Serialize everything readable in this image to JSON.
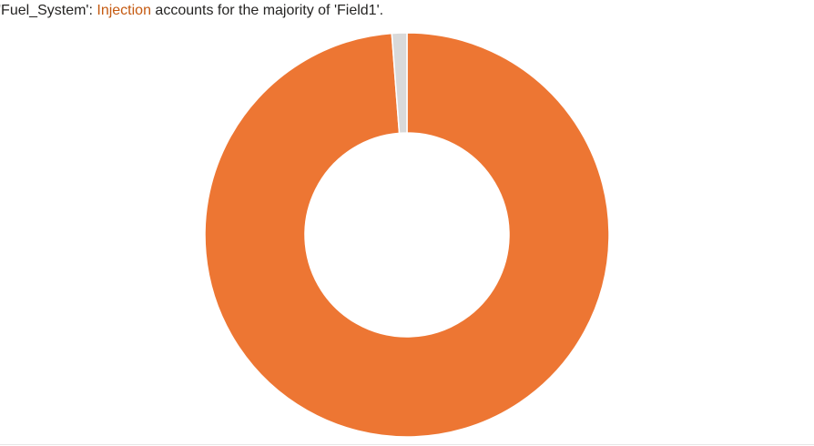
{
  "headline": {
    "prefix": "'Fuel_System': ",
    "highlight": "Injection",
    "suffix": " accounts for the majority of 'Field1'."
  },
  "colors": {
    "highlight_text": "#c55a11",
    "slice_major": "#ed7633",
    "slice_minor": "#d9d9d9",
    "background": "#ffffff"
  },
  "chart_data": {
    "type": "pie",
    "variant": "donut",
    "title": "",
    "slices": [
      {
        "label": "Injection",
        "value": 98.8,
        "color": "#ed7633"
      },
      {
        "label": "",
        "value": 1.2,
        "color": "#d9d9d9"
      }
    ],
    "legend": "none",
    "data_labels": false
  }
}
